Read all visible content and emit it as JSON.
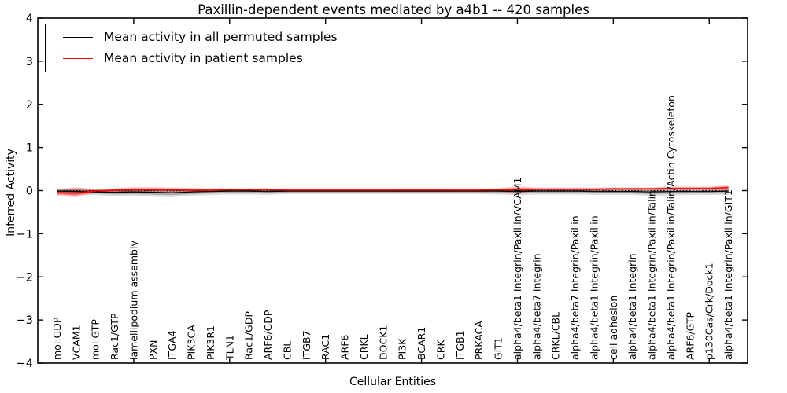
{
  "title": "Paxillin-dependent events mediated by a4b1 -- 420 samples",
  "ylabel": "Inferred Activity",
  "xlabel": "Cellular Entities",
  "legend": {
    "items": [
      {
        "label": "Mean activity in all permuted samples",
        "color": "#000000"
      },
      {
        "label": "Mean activity in patient samples",
        "color": "#ff0000"
      }
    ]
  },
  "chart_data": {
    "type": "line",
    "title": "Paxillin-dependent events mediated by a4b1 -- 420 samples",
    "xlabel": "Cellular Entities",
    "ylabel": "Inferred Activity",
    "ylim": [
      -4,
      4
    ],
    "yticks": [
      -4,
      -3,
      -2,
      -1,
      0,
      1,
      2,
      3,
      4
    ],
    "x_index_range": [
      0,
      37
    ],
    "unlabeled_xticks": [
      5,
      10,
      15,
      20,
      25,
      30,
      35
    ],
    "grid": false,
    "legend_position": "upper left",
    "zero_reference_line": {
      "y": 0,
      "style": "dotted",
      "color": "#000000"
    },
    "categories": [
      "mol:GDP",
      "VCAM1",
      "mol:GTP",
      "Rac1/GTP",
      "lamellipodium assembly",
      "PXN",
      "ITGA4",
      "PIK3CA",
      "PIK3R1",
      "TLN1",
      "Rac1/GDP",
      "ARF6/GDP",
      "CBL",
      "ITGB7",
      "RAC1",
      "ARF6",
      "CRKL",
      "DOCK1",
      "PI3K",
      "BCAR1",
      "CRK",
      "ITGB1",
      "PRKACA",
      "GIT1",
      "alpha4/beta1 Integrin/Paxillin/VCAM1",
      "alpha4/beta7 Integrin",
      "CRKL/CBL",
      "alpha4/beta7 Integrin/Paxillin",
      "alpha4/beta1 Integrin/Paxillin",
      "cell adhesion",
      "alpha4/beta1 Integrin",
      "alpha4/beta1 Integrin/Paxillin/Talin",
      "alpha4/beta1 Integrin/Paxillin/Talin/Actin Cytoskeleton",
      "ARF6/GTP",
      "p130Cas/Crk/Dock1",
      "alpha4/beta1 Integrin/Paxillin/GIT1"
    ],
    "series": [
      {
        "name": "Mean activity in all permuted samples",
        "color": "#000000",
        "band_fill": "#000000",
        "values": [
          -0.01,
          -0.02,
          -0.03,
          -0.04,
          -0.03,
          -0.04,
          -0.05,
          -0.03,
          -0.02,
          -0.01,
          -0.01,
          -0.02,
          -0.01,
          -0.01,
          -0.01,
          -0.01,
          -0.01,
          -0.01,
          -0.01,
          -0.01,
          -0.01,
          -0.01,
          -0.01,
          -0.01,
          -0.02,
          -0.01,
          -0.01,
          -0.01,
          -0.02,
          -0.02,
          -0.02,
          -0.03,
          -0.02,
          -0.02,
          -0.02,
          -0.01
        ],
        "band_upper": [
          0.05,
          0.06,
          0.05,
          0.05,
          0.05,
          0.05,
          0.05,
          0.05,
          0.05,
          0.05,
          0.05,
          0.05,
          0.04,
          0.04,
          0.04,
          0.04,
          0.04,
          0.04,
          0.04,
          0.04,
          0.04,
          0.04,
          0.04,
          0.05,
          0.06,
          0.05,
          0.05,
          0.05,
          0.05,
          0.05,
          0.05,
          0.05,
          0.05,
          0.05,
          0.05,
          0.06
        ],
        "band_lower": [
          -0.08,
          -0.09,
          -0.1,
          -0.13,
          -0.12,
          -0.14,
          -0.15,
          -0.12,
          -0.1,
          -0.09,
          -0.09,
          -0.1,
          -0.08,
          -0.08,
          -0.08,
          -0.08,
          -0.08,
          -0.08,
          -0.08,
          -0.08,
          -0.08,
          -0.08,
          -0.08,
          -0.09,
          -0.11,
          -0.09,
          -0.09,
          -0.09,
          -0.1,
          -0.1,
          -0.1,
          -0.12,
          -0.11,
          -0.1,
          -0.1,
          -0.1
        ]
      },
      {
        "name": "Mean activity in patient samples",
        "color": "#ff0000",
        "band_fill": "#ff0000",
        "values": [
          -0.05,
          -0.06,
          -0.01,
          0.01,
          0.02,
          0.02,
          0.02,
          0.01,
          0.01,
          0.02,
          0.02,
          0.02,
          0.01,
          0.01,
          0.01,
          0.01,
          0.01,
          0.01,
          0.01,
          0.01,
          0.01,
          0.01,
          0.01,
          0.02,
          0.01,
          0.03,
          0.03,
          0.03,
          0.03,
          0.04,
          0.04,
          0.04,
          0.05,
          0.05,
          0.05,
          0.07
        ],
        "band_upper": [
          0.03,
          0.08,
          0.03,
          0.05,
          0.08,
          0.08,
          0.07,
          0.06,
          0.05,
          0.05,
          0.05,
          0.05,
          0.04,
          0.04,
          0.04,
          0.04,
          0.04,
          0.04,
          0.05,
          0.05,
          0.05,
          0.04,
          0.04,
          0.05,
          0.1,
          0.07,
          0.07,
          0.07,
          0.07,
          0.08,
          0.08,
          0.08,
          0.09,
          0.09,
          0.09,
          0.12
        ],
        "band_lower": [
          -0.12,
          -0.16,
          -0.06,
          -0.04,
          -0.04,
          -0.04,
          -0.04,
          -0.03,
          -0.03,
          -0.02,
          -0.02,
          -0.02,
          -0.02,
          -0.02,
          -0.02,
          -0.02,
          -0.02,
          -0.02,
          -0.02,
          -0.02,
          -0.02,
          -0.02,
          -0.02,
          -0.02,
          -0.07,
          -0.01,
          -0.01,
          -0.01,
          -0.01,
          0.0,
          0.0,
          0.0,
          0.01,
          0.01,
          0.01,
          0.02
        ]
      }
    ]
  }
}
